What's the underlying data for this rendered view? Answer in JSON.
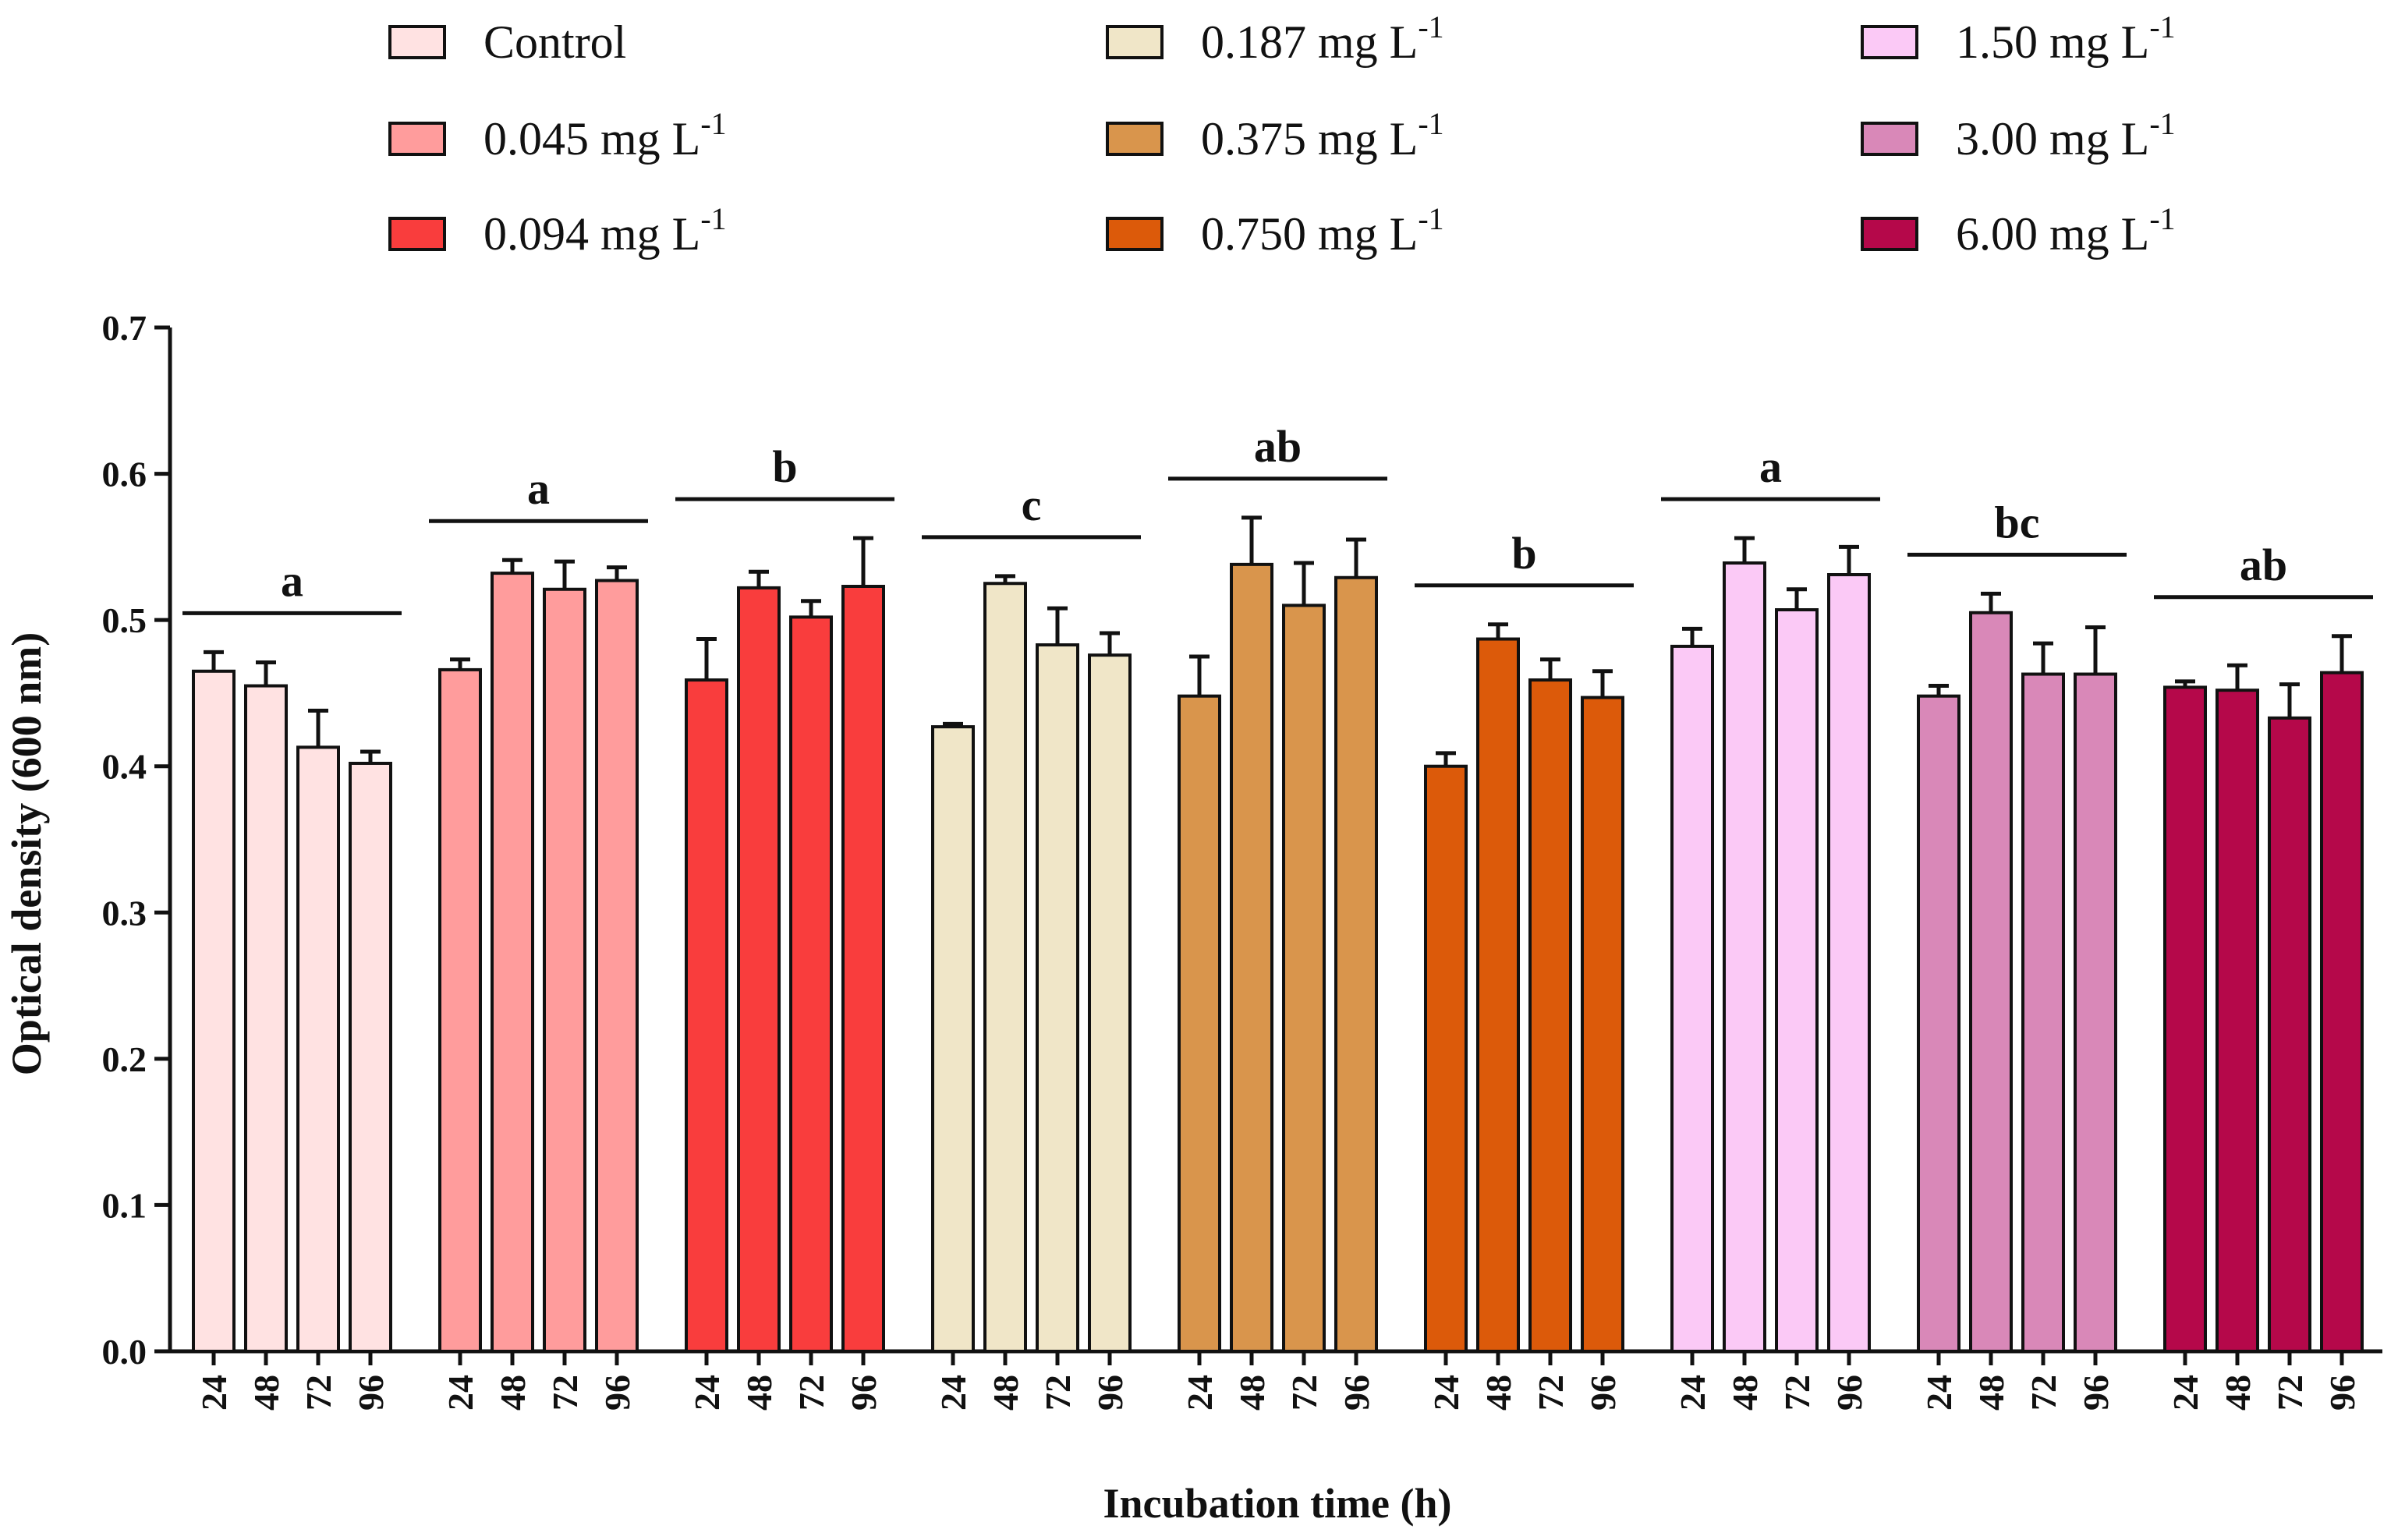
{
  "chart_data": {
    "type": "bar",
    "title": "",
    "xlabel": "Incubation time (h)",
    "ylabel": "Optical density (600 nm)",
    "ylim": [
      0,
      0.7
    ],
    "yticks": [
      "0.0",
      "0.1",
      "0.2",
      "0.3",
      "0.4",
      "0.5",
      "0.6",
      "0.7"
    ],
    "categories": [
      "24",
      "48",
      "72",
      "96"
    ],
    "legend_position": "top",
    "series": [
      {
        "name": "Control",
        "unit": "",
        "superscript": "",
        "color": "#FFE2E2",
        "letter": "a",
        "values": [
          0.465,
          0.455,
          0.413,
          0.402
        ],
        "errors": [
          0.013,
          0.016,
          0.025,
          0.008
        ]
      },
      {
        "name": "0.045 mg L",
        "unit": "mg L",
        "superscript": "-1",
        "color": "#FF9C9C",
        "letter": "a",
        "values": [
          0.466,
          0.532,
          0.521,
          0.527
        ],
        "errors": [
          0.007,
          0.009,
          0.019,
          0.009
        ]
      },
      {
        "name": "0.094 mg L",
        "unit": "mg L",
        "superscript": "-1",
        "color": "#F93D3D",
        "letter": "b",
        "values": [
          0.459,
          0.522,
          0.502,
          0.523
        ],
        "errors": [
          0.028,
          0.011,
          0.011,
          0.033
        ]
      },
      {
        "name": "0.187 mg L",
        "unit": "mg L",
        "superscript": "-1",
        "color": "#F0E6C8",
        "letter": "c",
        "values": [
          0.427,
          0.525,
          0.483,
          0.476
        ],
        "errors": [
          0.002,
          0.005,
          0.025,
          0.015
        ]
      },
      {
        "name": "0.375 mg L",
        "unit": "mg L",
        "superscript": "-1",
        "color": "#D9954C",
        "letter": "ab",
        "values": [
          0.448,
          0.538,
          0.51,
          0.529
        ],
        "errors": [
          0.027,
          0.032,
          0.029,
          0.026
        ]
      },
      {
        "name": "0.750 mg L",
        "unit": "mg L",
        "superscript": "-1",
        "color": "#DC5A0A",
        "letter": "b",
        "values": [
          0.4,
          0.487,
          0.459,
          0.447
        ],
        "errors": [
          0.009,
          0.01,
          0.014,
          0.018
        ]
      },
      {
        "name": "1.50 mg L",
        "unit": "mg L",
        "superscript": "-1",
        "color": "#FBC9F6",
        "letter": "a",
        "values": [
          0.482,
          0.539,
          0.507,
          0.531
        ],
        "errors": [
          0.012,
          0.017,
          0.014,
          0.019
        ]
      },
      {
        "name": "3.00 mg L",
        "unit": "mg L",
        "superscript": "-1",
        "color": "#D988B8",
        "letter": "bc",
        "values": [
          0.448,
          0.505,
          0.463,
          0.463
        ],
        "errors": [
          0.007,
          0.013,
          0.021,
          0.032
        ]
      },
      {
        "name": "6.00 mg L",
        "unit": "mg L",
        "superscript": "-1",
        "color": "#B5084A",
        "letter": "ab",
        "values": [
          0.454,
          0.452,
          0.433,
          0.464
        ],
        "errors": [
          0.004,
          0.017,
          0.023,
          0.025
        ]
      }
    ]
  }
}
